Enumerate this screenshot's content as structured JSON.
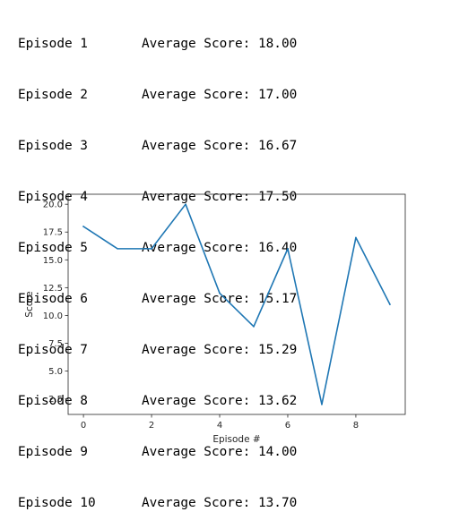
{
  "log": {
    "lines": [
      {
        "episode": "Episode 1",
        "score": "Average Score: 18.00"
      },
      {
        "episode": "Episode 2",
        "score": "Average Score: 17.00"
      },
      {
        "episode": "Episode 3",
        "score": "Average Score: 16.67"
      },
      {
        "episode": "Episode 4",
        "score": "Average Score: 17.50"
      },
      {
        "episode": "Episode 5",
        "score": "Average Score: 16.40"
      },
      {
        "episode": "Episode 6",
        "score": "Average Score: 15.17"
      },
      {
        "episode": "Episode 7",
        "score": "Average Score: 15.29"
      },
      {
        "episode": "Episode 8",
        "score": "Average Score: 13.62"
      },
      {
        "episode": "Episode 9",
        "score": "Average Score: 14.00"
      },
      {
        "episode": "Episode 10",
        "score": "Average Score: 13.70"
      }
    ]
  },
  "chart_data": {
    "type": "line",
    "title": "",
    "xlabel": "Episode #",
    "ylabel": "Score",
    "x": [
      0,
      1,
      2,
      3,
      4,
      5,
      6,
      7,
      8,
      9
    ],
    "series": [
      {
        "values": [
          18,
          16,
          16,
          20,
          12,
          9,
          16,
          2,
          17,
          11
        ],
        "color": "#1f77b4"
      }
    ],
    "xticks": [
      0,
      2,
      4,
      6,
      8
    ],
    "xtick_labels": [
      "0",
      "2",
      "4",
      "6",
      "8"
    ],
    "yticks": [
      2.5,
      5.0,
      7.5,
      10.0,
      12.5,
      15.0,
      17.5,
      20.0
    ],
    "ytick_labels": [
      "2.5",
      "5.0",
      "7.5",
      "10.0",
      "12.5",
      "15.0",
      "17.5",
      "20.0"
    ],
    "xlim": [
      -0.45,
      9.45
    ],
    "ylim": [
      1.1,
      20.9
    ],
    "grid": false,
    "legend": false
  }
}
